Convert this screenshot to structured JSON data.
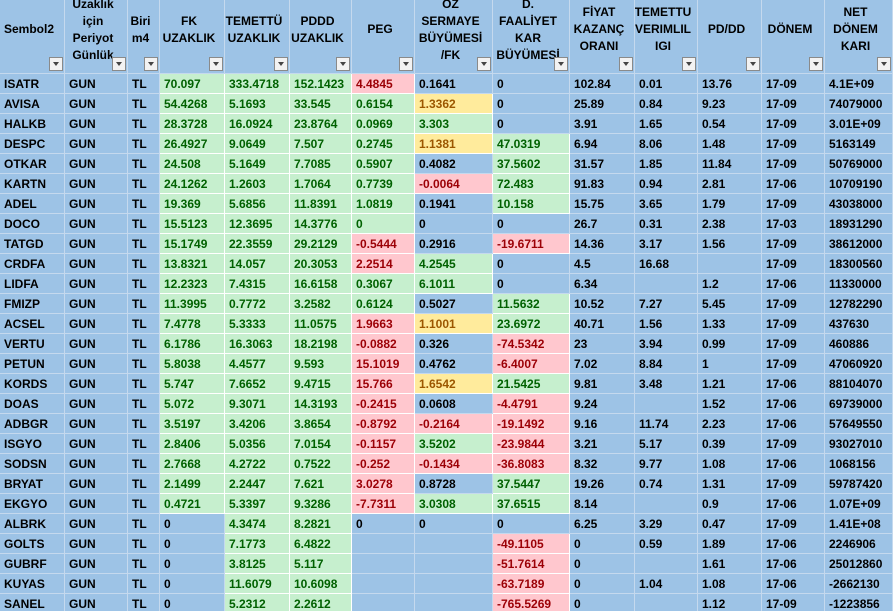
{
  "table": {
    "headers": [
      "Sembol2",
      "Uzaklık için Periyot Günlük",
      "Biri m4",
      "FK UZAKLIK",
      "TEMETTÜ UZAKLIK",
      "PDDD UZAKLIK",
      "PEG",
      "OZ SERMAYE BÜYÜMESİ /FK",
      "D. FAALİYET KAR BÜYÜMESİ",
      "FİYAT KAZANÇ ORANI",
      "TEMETTU VERIMLIL IGI",
      "PD/DD",
      "DÖNEM",
      "NET DÖNEM KARI"
    ],
    "rows": [
      [
        "ISATR",
        "GUN",
        "TL",
        {
          "text": "70.097",
          "fill": "green"
        },
        {
          "text": "333.4718",
          "fill": "green"
        },
        {
          "text": "152.1423",
          "fill": "green"
        },
        {
          "text": "4.4845",
          "fill": "red"
        },
        "0.1641",
        "0",
        "102.84",
        "0.01",
        "13.76",
        "17-09",
        "4.1E+09"
      ],
      [
        "AVISA",
        "GUN",
        "TL",
        {
          "text": "54.4268",
          "fill": "green"
        },
        {
          "text": "5.1693",
          "fill": "green"
        },
        {
          "text": "33.545",
          "fill": "green"
        },
        {
          "text": "0.6154",
          "fill": "green"
        },
        {
          "text": "1.3362",
          "fill": "yellow"
        },
        "0",
        "25.89",
        "0.84",
        "9.23",
        "17-09",
        "74079000"
      ],
      [
        "HALKB",
        "GUN",
        "TL",
        {
          "text": "28.3728",
          "fill": "green"
        },
        {
          "text": "16.0924",
          "fill": "green"
        },
        {
          "text": "23.8764",
          "fill": "green"
        },
        {
          "text": "0.0969",
          "fill": "green"
        },
        {
          "text": "3.303",
          "fill": "green"
        },
        "0",
        "3.91",
        "1.65",
        "0.54",
        "17-09",
        "3.01E+09"
      ],
      [
        "DESPC",
        "GUN",
        "TL",
        {
          "text": "26.4927",
          "fill": "green"
        },
        {
          "text": "9.0649",
          "fill": "green"
        },
        {
          "text": "7.507",
          "fill": "green"
        },
        {
          "text": "0.2745",
          "fill": "green"
        },
        {
          "text": "1.1381",
          "fill": "yellow"
        },
        {
          "text": "47.0319",
          "fill": "green"
        },
        "6.94",
        "8.06",
        "1.48",
        "17-09",
        "5163149"
      ],
      [
        "OTKAR",
        "GUN",
        "TL",
        {
          "text": "24.508",
          "fill": "green"
        },
        {
          "text": "5.1649",
          "fill": "green"
        },
        {
          "text": "7.7085",
          "fill": "green"
        },
        {
          "text": "0.5907",
          "fill": "green"
        },
        "0.4082",
        {
          "text": "37.5602",
          "fill": "green"
        },
        "31.57",
        "1.85",
        "11.84",
        "17-09",
        "50769000"
      ],
      [
        "KARTN",
        "GUN",
        "TL",
        {
          "text": "24.1262",
          "fill": "green"
        },
        {
          "text": "1.2603",
          "fill": "green"
        },
        {
          "text": "1.7064",
          "fill": "green"
        },
        {
          "text": "0.7739",
          "fill": "green"
        },
        {
          "text": "-0.0064",
          "fill": "red"
        },
        {
          "text": "72.483",
          "fill": "green"
        },
        "91.83",
        "0.94",
        "2.81",
        "17-06",
        "10709190"
      ],
      [
        "ADEL",
        "GUN",
        "TL",
        {
          "text": "19.369",
          "fill": "green"
        },
        {
          "text": "5.6856",
          "fill": "green"
        },
        {
          "text": "11.8391",
          "fill": "green"
        },
        {
          "text": "1.0819",
          "fill": "green"
        },
        "0.1941",
        {
          "text": "10.158",
          "fill": "green"
        },
        "15.75",
        "3.65",
        "1.79",
        "17-09",
        "43038000"
      ],
      [
        "DOCO",
        "GUN",
        "TL",
        {
          "text": "15.5123",
          "fill": "green"
        },
        {
          "text": "12.3695",
          "fill": "green"
        },
        {
          "text": "14.3776",
          "fill": "green"
        },
        {
          "text": "0",
          "fill": "green"
        },
        "0",
        "0",
        "26.7",
        "0.31",
        "2.38",
        "17-03",
        "18931290"
      ],
      [
        "TATGD",
        "GUN",
        "TL",
        {
          "text": "15.1749",
          "fill": "green"
        },
        {
          "text": "22.3559",
          "fill": "green"
        },
        {
          "text": "29.2129",
          "fill": "green"
        },
        {
          "text": "-0.5444",
          "fill": "red"
        },
        "0.2916",
        {
          "text": "-19.6711",
          "fill": "red"
        },
        "14.36",
        "3.17",
        "1.56",
        "17-09",
        "38612000"
      ],
      [
        "CRDFA",
        "GUN",
        "TL",
        {
          "text": "13.8321",
          "fill": "green"
        },
        {
          "text": "14.057",
          "fill": "green"
        },
        {
          "text": "20.3053",
          "fill": "green"
        },
        {
          "text": "2.2514",
          "fill": "red"
        },
        {
          "text": "4.2545",
          "fill": "green"
        },
        "0",
        "4.5",
        "16.68",
        null,
        "17-09",
        "18300560"
      ],
      [
        "LIDFA",
        "GUN",
        "TL",
        {
          "text": "12.2323",
          "fill": "green"
        },
        {
          "text": "7.4315",
          "fill": "green"
        },
        {
          "text": "16.6158",
          "fill": "green"
        },
        {
          "text": "0.3067",
          "fill": "green"
        },
        {
          "text": "6.1011",
          "fill": "green"
        },
        "0",
        "6.34",
        null,
        "1.2",
        "17-06",
        "11330000"
      ],
      [
        "FMIZP",
        "GUN",
        "TL",
        {
          "text": "11.3995",
          "fill": "green"
        },
        {
          "text": "0.7772",
          "fill": "green"
        },
        {
          "text": "3.2582",
          "fill": "green"
        },
        {
          "text": "0.6124",
          "fill": "green"
        },
        "0.5027",
        {
          "text": "11.5632",
          "fill": "green"
        },
        "10.52",
        "7.27",
        "5.45",
        "17-09",
        "12782290"
      ],
      [
        "ACSEL",
        "GUN",
        "TL",
        {
          "text": "7.4778",
          "fill": "green"
        },
        {
          "text": "5.3333",
          "fill": "green"
        },
        {
          "text": "11.0575",
          "fill": "green"
        },
        {
          "text": "1.9663",
          "fill": "red"
        },
        {
          "text": "1.1001",
          "fill": "yellow"
        },
        {
          "text": "23.6972",
          "fill": "green"
        },
        "40.71",
        "1.56",
        "1.33",
        "17-09",
        "437630"
      ],
      [
        "VERTU",
        "GUN",
        "TL",
        {
          "text": "6.1786",
          "fill": "green"
        },
        {
          "text": "16.3063",
          "fill": "green"
        },
        {
          "text": "18.2198",
          "fill": "green"
        },
        {
          "text": "-0.0882",
          "fill": "red"
        },
        "0.326",
        {
          "text": "-74.5342",
          "fill": "red"
        },
        "23",
        "3.94",
        "0.99",
        "17-09",
        "460886"
      ],
      [
        "PETUN",
        "GUN",
        "TL",
        {
          "text": "5.8038",
          "fill": "green"
        },
        {
          "text": "4.4577",
          "fill": "green"
        },
        {
          "text": "9.593",
          "fill": "green"
        },
        {
          "text": "15.1019",
          "fill": "red"
        },
        "0.4762",
        {
          "text": "-6.4007",
          "fill": "red"
        },
        "7.02",
        "8.84",
        "1",
        "17-09",
        "47060920"
      ],
      [
        "KORDS",
        "GUN",
        "TL",
        {
          "text": "5.747",
          "fill": "green"
        },
        {
          "text": "7.6652",
          "fill": "green"
        },
        {
          "text": "9.4715",
          "fill": "green"
        },
        {
          "text": "15.766",
          "fill": "red"
        },
        {
          "text": "1.6542",
          "fill": "yellow"
        },
        {
          "text": "21.5425",
          "fill": "green"
        },
        "9.81",
        "3.48",
        "1.21",
        "17-06",
        "88104070"
      ],
      [
        "DOAS",
        "GUN",
        "TL",
        {
          "text": "5.072",
          "fill": "green"
        },
        {
          "text": "9.3071",
          "fill": "green"
        },
        {
          "text": "14.3193",
          "fill": "green"
        },
        {
          "text": "-0.2415",
          "fill": "red"
        },
        "0.0608",
        {
          "text": "-4.4791",
          "fill": "red"
        },
        "9.24",
        null,
        "1.52",
        "17-06",
        "69739000"
      ],
      [
        "ADBGR",
        "GUN",
        "TL",
        {
          "text": "3.5197",
          "fill": "green"
        },
        {
          "text": "3.4206",
          "fill": "green"
        },
        {
          "text": "3.8654",
          "fill": "green"
        },
        {
          "text": "-0.8792",
          "fill": "red"
        },
        {
          "text": "-0.2164",
          "fill": "red"
        },
        {
          "text": "-19.1492",
          "fill": "red"
        },
        "9.16",
        "11.74",
        "2.23",
        "17-06",
        "57649550"
      ],
      [
        "ISGYO",
        "GUN",
        "TL",
        {
          "text": "2.8406",
          "fill": "green"
        },
        {
          "text": "5.0356",
          "fill": "green"
        },
        {
          "text": "7.0154",
          "fill": "green"
        },
        {
          "text": "-0.1157",
          "fill": "red"
        },
        {
          "text": "3.5202",
          "fill": "green"
        },
        {
          "text": "-23.9844",
          "fill": "red"
        },
        "3.21",
        "5.17",
        "0.39",
        "17-09",
        "93027010"
      ],
      [
        "SODSN",
        "GUN",
        "TL",
        {
          "text": "2.7668",
          "fill": "green"
        },
        {
          "text": "4.2722",
          "fill": "green"
        },
        {
          "text": "0.7522",
          "fill": "green"
        },
        {
          "text": "-0.252",
          "fill": "red"
        },
        {
          "text": "-0.1434",
          "fill": "red"
        },
        {
          "text": "-36.8083",
          "fill": "red"
        },
        "8.32",
        "9.77",
        "1.08",
        "17-06",
        "1068156"
      ],
      [
        "BRYAT",
        "GUN",
        "TL",
        {
          "text": "2.1499",
          "fill": "green"
        },
        {
          "text": "2.2447",
          "fill": "green"
        },
        {
          "text": "7.621",
          "fill": "green"
        },
        {
          "text": "3.0278",
          "fill": "red"
        },
        "0.8728",
        {
          "text": "37.5447",
          "fill": "green"
        },
        "19.26",
        "0.74",
        "1.31",
        "17-09",
        "59787420"
      ],
      [
        "EKGYO",
        "GUN",
        "TL",
        {
          "text": "0.4721",
          "fill": "green"
        },
        {
          "text": "5.3397",
          "fill": "green"
        },
        {
          "text": "9.3286",
          "fill": "green"
        },
        {
          "text": "-7.7311",
          "fill": "red"
        },
        {
          "text": "3.0308",
          "fill": "green"
        },
        {
          "text": "37.6515",
          "fill": "green"
        },
        "8.14",
        null,
        "0.9",
        "17-06",
        "1.07E+09"
      ],
      [
        "ALBRK",
        "GUN",
        "TL",
        "0",
        {
          "text": "4.3474",
          "fill": "green"
        },
        {
          "text": "8.2821",
          "fill": "green"
        },
        "0",
        "0",
        "0",
        "6.25",
        "3.29",
        "0.47",
        "17-09",
        "1.41E+08"
      ],
      [
        "GOLTS",
        "GUN",
        "TL",
        "0",
        {
          "text": "7.1773",
          "fill": "green"
        },
        {
          "text": "6.4822",
          "fill": "green"
        },
        null,
        null,
        {
          "text": "-49.1105",
          "fill": "red"
        },
        "0",
        "0.59",
        "1.89",
        "17-06",
        "2246906"
      ],
      [
        "GUBRF",
        "GUN",
        "TL",
        "0",
        {
          "text": "3.8125",
          "fill": "green"
        },
        {
          "text": "5.117",
          "fill": "green"
        },
        null,
        null,
        {
          "text": "-51.7614",
          "fill": "red"
        },
        "0",
        null,
        "1.61",
        "17-06",
        "25012860"
      ],
      [
        "KUYAS",
        "GUN",
        "TL",
        "0",
        {
          "text": "11.6079",
          "fill": "green"
        },
        {
          "text": "10.6098",
          "fill": "green"
        },
        null,
        null,
        {
          "text": "-63.7189",
          "fill": "red"
        },
        "0",
        "1.04",
        "1.08",
        "17-06",
        "-2662130"
      ],
      [
        "SANEL",
        "GUN",
        "TL",
        "0",
        {
          "text": "5.2312",
          "fill": "green"
        },
        {
          "text": "2.2612",
          "fill": "green"
        },
        null,
        null,
        {
          "text": "-765.5269",
          "fill": "red"
        },
        "0",
        null,
        "1.12",
        "17-09",
        "-1223856"
      ]
    ]
  }
}
